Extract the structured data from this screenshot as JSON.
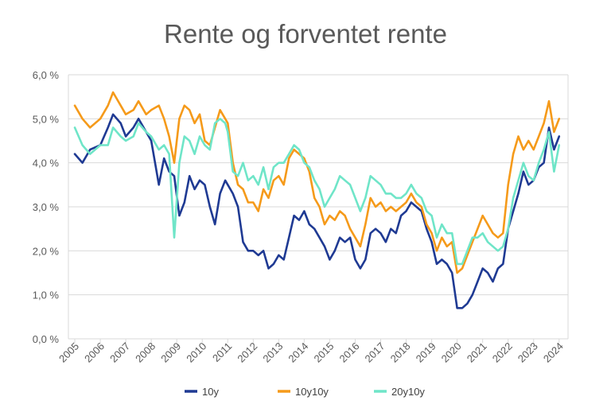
{
  "chart_data": {
    "type": "line",
    "title": "Rente og forventet rente",
    "xlabel": "",
    "ylabel": "",
    "ylim": [
      0,
      6
    ],
    "xlim": [
      2004.75,
      2024.35
    ],
    "yticks": [
      "0,0 %",
      "1,0 %",
      "2,0 %",
      "3,0 %",
      "4,0 %",
      "5,0 %",
      "6,0 %"
    ],
    "xticks": [
      "2005",
      "2006",
      "2007",
      "2008",
      "2009",
      "2010",
      "2011",
      "2012",
      "2013",
      "2014",
      "2015",
      "2016",
      "2017",
      "2018",
      "2019",
      "2020",
      "2021",
      "2022",
      "2023",
      "2024"
    ],
    "grid": true,
    "legend": "bottom",
    "series": [
      {
        "name": "10y",
        "color": "#1f3a93",
        "x": [
          2005.0,
          2005.3,
          2005.6,
          2006.0,
          2006.3,
          2006.5,
          2006.8,
          2007.0,
          2007.3,
          2007.5,
          2007.8,
          2008.0,
          2008.3,
          2008.5,
          2008.7,
          2008.9,
          2009.1,
          2009.3,
          2009.5,
          2009.7,
          2009.9,
          2010.1,
          2010.3,
          2010.5,
          2010.7,
          2010.9,
          2011.0,
          2011.2,
          2011.4,
          2011.6,
          2011.8,
          2012.0,
          2012.2,
          2012.4,
          2012.6,
          2012.8,
          2013.0,
          2013.2,
          2013.4,
          2013.6,
          2013.8,
          2014.0,
          2014.2,
          2014.4,
          2014.6,
          2014.8,
          2015.0,
          2015.2,
          2015.4,
          2015.6,
          2015.8,
          2016.0,
          2016.2,
          2016.4,
          2016.6,
          2016.8,
          2017.0,
          2017.2,
          2017.4,
          2017.6,
          2017.8,
          2018.0,
          2018.2,
          2018.4,
          2018.6,
          2018.8,
          2019.0,
          2019.2,
          2019.4,
          2019.6,
          2019.8,
          2020.0,
          2020.2,
          2020.4,
          2020.6,
          2020.8,
          2021.0,
          2021.2,
          2021.4,
          2021.6,
          2021.8,
          2022.0,
          2022.2,
          2022.4,
          2022.6,
          2022.8,
          2023.0,
          2023.2,
          2023.4,
          2023.6,
          2023.8,
          2024.0
        ],
        "y": [
          4.2,
          4.0,
          4.3,
          4.4,
          4.8,
          5.1,
          4.9,
          4.6,
          4.8,
          5.0,
          4.7,
          4.5,
          3.5,
          4.1,
          3.8,
          3.7,
          2.8,
          3.1,
          3.7,
          3.4,
          3.6,
          3.5,
          3.0,
          2.6,
          3.3,
          3.6,
          3.5,
          3.3,
          3.0,
          2.2,
          2.0,
          2.0,
          1.9,
          2.0,
          1.6,
          1.7,
          1.9,
          1.8,
          2.3,
          2.8,
          2.7,
          2.9,
          2.6,
          2.5,
          2.3,
          2.1,
          1.8,
          2.0,
          2.3,
          2.2,
          2.3,
          1.8,
          1.6,
          1.8,
          2.4,
          2.5,
          2.4,
          2.2,
          2.5,
          2.4,
          2.8,
          2.9,
          3.1,
          3.0,
          2.9,
          2.5,
          2.2,
          1.7,
          1.8,
          1.7,
          1.5,
          0.7,
          0.7,
          0.8,
          1.0,
          1.3,
          1.6,
          1.5,
          1.3,
          1.6,
          1.7,
          2.5,
          2.9,
          3.3,
          3.8,
          3.5,
          3.6,
          3.9,
          4.0,
          4.8,
          4.3,
          4.6
        ]
      },
      {
        "name": "10y10y",
        "color": "#f59a1a",
        "x": [
          2005.0,
          2005.3,
          2005.6,
          2006.0,
          2006.3,
          2006.5,
          2006.8,
          2007.0,
          2007.3,
          2007.5,
          2007.8,
          2008.0,
          2008.3,
          2008.5,
          2008.7,
          2008.9,
          2009.1,
          2009.3,
          2009.5,
          2009.7,
          2009.9,
          2010.1,
          2010.3,
          2010.5,
          2010.7,
          2010.9,
          2011.0,
          2011.2,
          2011.4,
          2011.6,
          2011.8,
          2012.0,
          2012.2,
          2012.4,
          2012.6,
          2012.8,
          2013.0,
          2013.2,
          2013.4,
          2013.6,
          2013.8,
          2014.0,
          2014.2,
          2014.4,
          2014.6,
          2014.8,
          2015.0,
          2015.2,
          2015.4,
          2015.6,
          2015.8,
          2016.0,
          2016.2,
          2016.4,
          2016.6,
          2016.8,
          2017.0,
          2017.2,
          2017.4,
          2017.6,
          2017.8,
          2018.0,
          2018.2,
          2018.4,
          2018.6,
          2018.8,
          2019.0,
          2019.2,
          2019.4,
          2019.6,
          2019.8,
          2020.0,
          2020.2,
          2020.4,
          2020.6,
          2020.8,
          2021.0,
          2021.2,
          2021.4,
          2021.6,
          2021.8,
          2022.0,
          2022.2,
          2022.4,
          2022.6,
          2022.8,
          2023.0,
          2023.2,
          2023.4,
          2023.6,
          2023.8,
          2024.0
        ],
        "y": [
          5.3,
          5.0,
          4.8,
          5.0,
          5.3,
          5.6,
          5.3,
          5.1,
          5.2,
          5.4,
          5.1,
          5.2,
          5.3,
          5.0,
          4.6,
          4.0,
          5.0,
          5.3,
          5.2,
          4.9,
          5.1,
          4.5,
          4.4,
          4.8,
          5.2,
          5.0,
          4.9,
          4.0,
          3.5,
          3.4,
          3.1,
          3.1,
          2.9,
          3.4,
          3.2,
          3.6,
          3.7,
          3.5,
          4.1,
          4.3,
          4.2,
          4.1,
          3.8,
          3.2,
          3.0,
          2.6,
          2.8,
          2.7,
          2.9,
          2.8,
          2.5,
          2.3,
          2.1,
          2.6,
          3.2,
          3.0,
          3.1,
          2.9,
          3.0,
          2.9,
          3.0,
          3.1,
          3.3,
          3.1,
          3.0,
          2.6,
          2.4,
          2.0,
          2.3,
          2.1,
          2.2,
          1.5,
          1.6,
          1.9,
          2.2,
          2.5,
          2.8,
          2.6,
          2.4,
          2.3,
          2.4,
          3.5,
          4.2,
          4.6,
          4.3,
          4.5,
          4.3,
          4.6,
          4.9,
          5.4,
          4.7,
          5.0
        ]
      },
      {
        "name": "20y10y",
        "color": "#6fe5c8",
        "x": [
          2005.0,
          2005.3,
          2005.6,
          2006.0,
          2006.3,
          2006.5,
          2006.8,
          2007.0,
          2007.3,
          2007.5,
          2007.8,
          2008.0,
          2008.3,
          2008.5,
          2008.7,
          2008.9,
          2009.1,
          2009.3,
          2009.5,
          2009.7,
          2009.9,
          2010.1,
          2010.3,
          2010.5,
          2010.7,
          2010.9,
          2011.0,
          2011.2,
          2011.4,
          2011.6,
          2011.8,
          2012.0,
          2012.2,
          2012.4,
          2012.6,
          2012.8,
          2013.0,
          2013.2,
          2013.4,
          2013.6,
          2013.8,
          2014.0,
          2014.2,
          2014.4,
          2014.6,
          2014.8,
          2015.0,
          2015.2,
          2015.4,
          2015.6,
          2015.8,
          2016.0,
          2016.2,
          2016.4,
          2016.6,
          2016.8,
          2017.0,
          2017.2,
          2017.4,
          2017.6,
          2017.8,
          2018.0,
          2018.2,
          2018.4,
          2018.6,
          2018.8,
          2019.0,
          2019.2,
          2019.4,
          2019.6,
          2019.8,
          2020.0,
          2020.2,
          2020.4,
          2020.6,
          2020.8,
          2021.0,
          2021.2,
          2021.4,
          2021.6,
          2021.8,
          2022.0,
          2022.2,
          2022.4,
          2022.6,
          2022.8,
          2023.0,
          2023.2,
          2023.4,
          2023.6,
          2023.8,
          2024.0
        ],
        "y": [
          4.8,
          4.4,
          4.2,
          4.4,
          4.4,
          4.8,
          4.6,
          4.5,
          4.6,
          4.9,
          4.7,
          4.6,
          4.3,
          4.4,
          4.2,
          2.3,
          4.0,
          4.6,
          4.5,
          4.2,
          4.6,
          4.4,
          4.3,
          4.9,
          5.0,
          4.9,
          4.7,
          3.8,
          3.7,
          4.0,
          3.6,
          3.7,
          3.5,
          3.9,
          3.4,
          3.9,
          4.0,
          4.0,
          4.2,
          4.4,
          4.3,
          4.0,
          3.9,
          3.6,
          3.4,
          3.0,
          3.2,
          3.4,
          3.7,
          3.6,
          3.5,
          3.2,
          2.9,
          3.2,
          3.7,
          3.6,
          3.5,
          3.3,
          3.3,
          3.2,
          3.2,
          3.3,
          3.5,
          3.3,
          3.2,
          2.9,
          2.8,
          2.3,
          2.6,
          2.4,
          2.4,
          1.7,
          1.7,
          2.0,
          2.3,
          2.3,
          2.4,
          2.2,
          2.1,
          2.0,
          2.1,
          2.5,
          3.2,
          3.6,
          4.0,
          3.7,
          3.6,
          4.0,
          4.3,
          4.7,
          3.8,
          4.4
        ]
      }
    ]
  }
}
